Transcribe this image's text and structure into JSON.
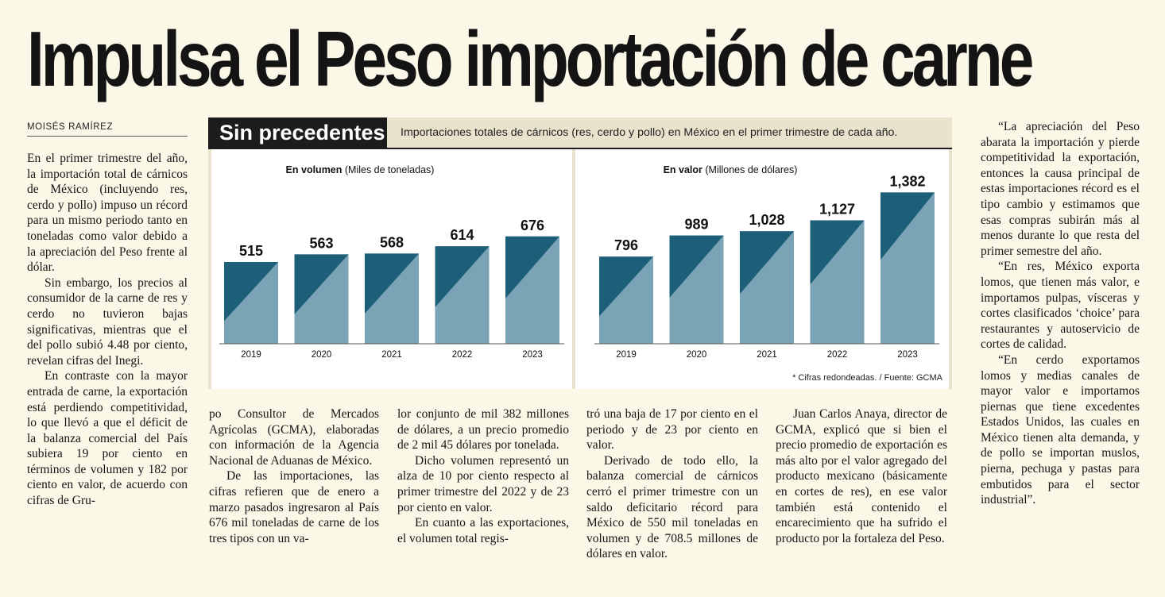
{
  "headline": "Impulsa el Peso importación de carne",
  "byline": "MOISÉS RAMÍREZ",
  "graphic": {
    "title": "Sin precedentes",
    "subtitle": "Importaciones totales de cárnicos (res, cerdo y pollo) en México en el primer trimestre de cada año.",
    "source": "* Cifras redondeadas. / Fuente: GCMA",
    "colors": {
      "bar_light": "#7aa3b6",
      "bar_dark": "#1d5f78",
      "panel_bg": "#ffffff"
    }
  },
  "chart_data": [
    {
      "type": "bar",
      "title_bold": "En volumen",
      "title_rest": "(Miles de toneladas)",
      "categories": [
        "2019",
        "2020",
        "2021",
        "2022",
        "2023"
      ],
      "values": [
        515,
        563,
        568,
        614,
        676
      ],
      "labels": [
        "515",
        "563",
        "568",
        "614",
        "676"
      ],
      "ylim": [
        0,
        1000
      ]
    },
    {
      "type": "bar",
      "title_bold": "En valor",
      "title_rest": "(Millones de dólares)",
      "categories": [
        "2019",
        "2020",
        "2021",
        "2022",
        "2023"
      ],
      "values": [
        796,
        989,
        1028,
        1127,
        1382
      ],
      "labels": [
        "796",
        "989",
        "1,028",
        "1,127",
        "1,382"
      ],
      "ylim": [
        0,
        1450
      ]
    }
  ],
  "article": {
    "col1": [
      "En el primer trimestre del año, la importación total de cárnicos de México (incluyendo res, cerdo y pollo) impuso un récord para un mismo periodo tanto en toneladas como valor debido a la apreciación del Peso frente al dólar.",
      "Sin embargo, los precios al consumidor de la carne de res y cerdo no tuvieron bajas significativas, mientras que el del pollo subió 4.48 por ciento, revelan cifras del Inegi.",
      "En contraste con la mayor entrada de carne, la exportación está perdiendo competitividad, lo que llevó a que el déficit de la balanza comercial del País subiera 19 por ciento en términos de volumen y 182 por ciento en valor, de acuerdo con cifras de Gru-"
    ],
    "col2": [
      "po Consultor de Mercados Agrícolas (GCMA), elaboradas con información de la Agencia Nacional de Aduanas de México.",
      "De las importaciones, las cifras refieren que de enero a marzo pasados ingresaron al País 676 mil toneladas de carne de los tres tipos con un va-"
    ],
    "col3": [
      "lor conjunto de mil 382 millones de dólares, a un precio promedio de 2 mil 45 dólares por tonelada.",
      "Dicho volumen representó un alza de 10 por ciento respecto al primer trimestre del 2022 y de 23 por ciento en valor.",
      "En cuanto a las exportaciones, el volumen total regis-"
    ],
    "col4": [
      "tró una baja de 17 por ciento en el periodo y de 23 por ciento en valor.",
      "Derivado de todo ello, la balanza comercial de cárnicos cerró el primer trimestre con un saldo deficitario récord para México de 550 mil toneladas en volumen y de 708.5 millones de dólares en valor."
    ],
    "col5": [
      "Juan Carlos Anaya, director de GCMA, explicó que si bien el precio promedio de exportación es más alto por el valor agregado del producto mexicano (básicamente en cortes de res), en ese valor también está contenido el encarecimiento que ha sufrido el producto por la fortaleza del Peso."
    ],
    "col6": [
      "“La apreciación del Peso abarata la importación y pierde competitividad la exportación, entonces la causa principal de estas importaciones récord es el tipo cambio y estimamos que esas compras subirán más al menos durante lo que resta del primer semestre del año.",
      "“En res, México exporta lomos, que tienen más valor, e importamos pulpas, vísceras y cortes clasificados ‘choice’ para restaurantes y autoservicio de cortes de calidad.",
      "“En cerdo exportamos lomos y medias canales de mayor valor e importamos piernas que tiene excedentes Estados Unidos, las cuales en México tienen alta demanda, y de pollo se importan muslos, pierna, pechuga y pastas para embutidos para el sector industrial”."
    ]
  }
}
